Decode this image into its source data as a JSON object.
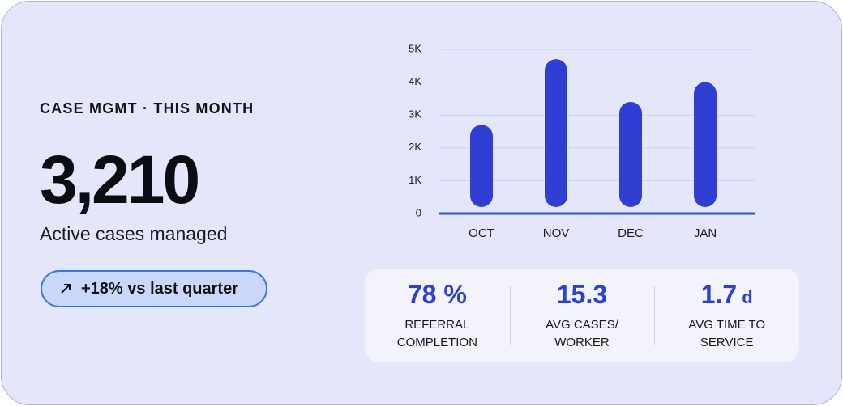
{
  "header": {
    "title": "CASE MGMT · THIS MONTH"
  },
  "kpi": {
    "value": "3,210",
    "label": "Active cases managed"
  },
  "badge": {
    "text": "+18% vs last quarter"
  },
  "chart_data": {
    "type": "bar",
    "categories": [
      "OCT",
      "NOV",
      "DEC",
      "JAN"
    ],
    "values": [
      2700,
      4700,
      3400,
      4000
    ],
    "color": "#2f3fd3",
    "ylim": [
      0,
      5000
    ],
    "yticks": [
      0,
      {
        "value": 1000,
        "label": "1K"
      },
      {
        "value": 2000,
        "label": "2K"
      },
      {
        "value": 3000,
        "label": "3K"
      },
      {
        "value": 4000,
        "label": "4K"
      },
      {
        "value": 5000,
        "label": "5K"
      }
    ],
    "grid": true
  },
  "stats": [
    {
      "value": "78 %",
      "label": "REFERRAL COMPLETION"
    },
    {
      "value": "15.3",
      "label": "AVG CASES/ WORKER"
    },
    {
      "value": "1.7",
      "unit": "d",
      "label": "AVG TIME TO SERVICE"
    }
  ]
}
